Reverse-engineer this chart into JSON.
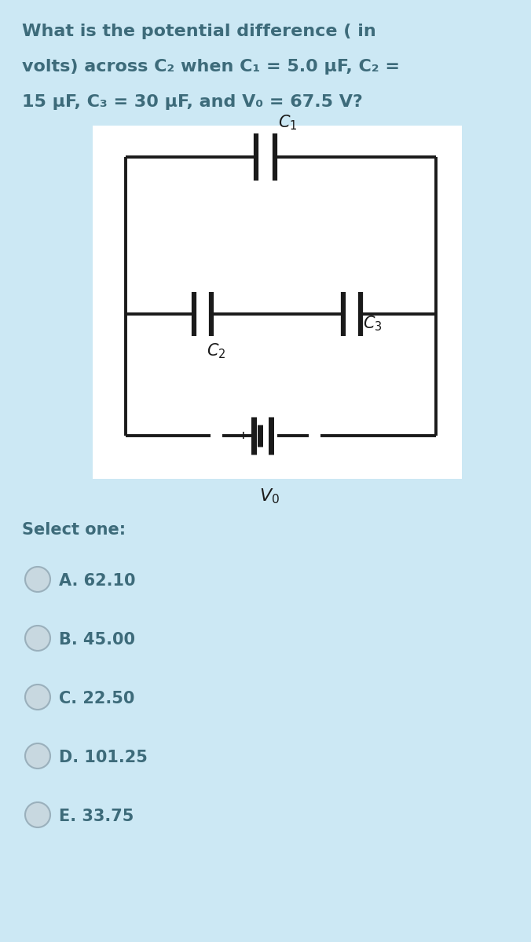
{
  "bg_color": "#cce8f4",
  "circuit_bg": "#ffffff",
  "text_color": "#3d6b7a",
  "title_line1": "What is the potential difference ( in",
  "title_line2": "volts) across C₂ when C₁ = 5.0 µF, C₂ =",
  "title_line3": "15 µF, C₃ = 30 µF, and V₀ = 67.5 V?",
  "select_text": "Select one:",
  "options": [
    "A. 62.10",
    "B. 45.00",
    "C. 22.50",
    "D. 101.25",
    "E. 33.75"
  ],
  "line_color": "#1a1a1a",
  "lw": 2.8,
  "radio_color": "#c8d8e0",
  "radio_border": "#9ab0bc"
}
